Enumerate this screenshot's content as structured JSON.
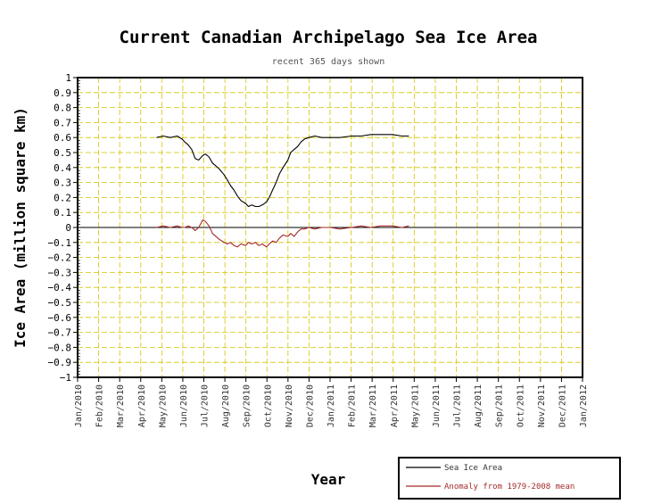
{
  "chart_data": {
    "type": "line",
    "title": "Current Canadian Archipelago Sea Ice Area",
    "subtitle": "recent 365 days shown",
    "xlabel": "Year",
    "ylabel": "Ice Area (million square km)",
    "ylim": [
      -1,
      1
    ],
    "ytick_step": 0.1,
    "ytick_labels": [
      "1",
      "0.9",
      "0.8",
      "0.7",
      "0.6",
      "0.5",
      "0.4",
      "0.3",
      "0.2",
      "0.1",
      "0",
      "−0.1",
      "−0.2",
      "−0.3",
      "−0.4",
      "−0.5",
      "−0.6",
      "−0.7",
      "−0.8",
      "−0.9",
      "−1"
    ],
    "xtick_labels": [
      "Jan/2010",
      "Feb/2010",
      "Mar/2010",
      "Apr/2010",
      "May/2010",
      "Jun/2010",
      "Jul/2010",
      "Aug/2010",
      "Sep/2010",
      "Oct/2010",
      "Nov/2010",
      "Dec/2010",
      "Jan/2011",
      "Feb/2011",
      "Mar/2011",
      "Apr/2011",
      "May/2011",
      "Jun/2011",
      "Jul/2011",
      "Aug/2011",
      "Sep/2011",
      "Oct/2011",
      "Nov/2011",
      "Dec/2011",
      "Jan/2012"
    ],
    "xlim": [
      "2010-01-01",
      "2012-01-01"
    ],
    "grid": true,
    "grid_color": "#d4c400",
    "legend_position": "bottom-right",
    "series": [
      {
        "name": "Sea Ice Area",
        "color": "#000000",
        "x": [
          "2010-04-25",
          "2010-05-05",
          "2010-05-15",
          "2010-05-25",
          "2010-06-01",
          "2010-06-05",
          "2010-06-10",
          "2010-06-15",
          "2010-06-20",
          "2010-06-25",
          "2010-07-01",
          "2010-07-05",
          "2010-07-10",
          "2010-07-15",
          "2010-07-20",
          "2010-07-25",
          "2010-08-01",
          "2010-08-05",
          "2010-08-10",
          "2010-08-15",
          "2010-08-20",
          "2010-08-25",
          "2010-09-01",
          "2010-09-05",
          "2010-09-10",
          "2010-09-15",
          "2010-09-20",
          "2010-09-25",
          "2010-10-01",
          "2010-10-05",
          "2010-10-10",
          "2010-10-15",
          "2010-10-20",
          "2010-10-25",
          "2010-11-01",
          "2010-11-05",
          "2010-11-10",
          "2010-11-15",
          "2010-11-20",
          "2010-11-25",
          "2010-12-01",
          "2010-12-10",
          "2010-12-20",
          "2011-01-01",
          "2011-01-15",
          "2011-02-01",
          "2011-02-15",
          "2011-03-01",
          "2011-03-15",
          "2011-04-01",
          "2011-04-15",
          "2011-04-25"
        ],
        "values": [
          0.6,
          0.61,
          0.6,
          0.61,
          0.59,
          0.57,
          0.55,
          0.52,
          0.46,
          0.45,
          0.48,
          0.49,
          0.47,
          0.43,
          0.41,
          0.39,
          0.35,
          0.32,
          0.28,
          0.25,
          0.21,
          0.18,
          0.16,
          0.14,
          0.15,
          0.14,
          0.14,
          0.15,
          0.17,
          0.2,
          0.25,
          0.3,
          0.36,
          0.4,
          0.45,
          0.5,
          0.52,
          0.54,
          0.57,
          0.59,
          0.6,
          0.61,
          0.6,
          0.6,
          0.6,
          0.61,
          0.61,
          0.62,
          0.62,
          0.62,
          0.61,
          0.61
        ]
      },
      {
        "name": "Anomaly from 1979-2008 mean",
        "color": "#a52a2a",
        "x": [
          "2010-04-25",
          "2010-05-05",
          "2010-05-15",
          "2010-05-25",
          "2010-06-01",
          "2010-06-05",
          "2010-06-10",
          "2010-06-15",
          "2010-06-20",
          "2010-06-25",
          "2010-07-01",
          "2010-07-05",
          "2010-07-10",
          "2010-07-15",
          "2010-07-20",
          "2010-07-25",
          "2010-08-01",
          "2010-08-05",
          "2010-08-10",
          "2010-08-15",
          "2010-08-20",
          "2010-08-25",
          "2010-09-01",
          "2010-09-05",
          "2010-09-10",
          "2010-09-15",
          "2010-09-20",
          "2010-09-25",
          "2010-10-01",
          "2010-10-05",
          "2010-10-10",
          "2010-10-15",
          "2010-10-20",
          "2010-10-25",
          "2010-11-01",
          "2010-11-05",
          "2010-11-10",
          "2010-11-15",
          "2010-11-20",
          "2010-11-25",
          "2010-12-01",
          "2010-12-10",
          "2010-12-20",
          "2011-01-01",
          "2011-01-15",
          "2011-02-01",
          "2011-02-15",
          "2011-03-01",
          "2011-03-15",
          "2011-04-01",
          "2011-04-15",
          "2011-04-25"
        ],
        "values": [
          0.0,
          0.01,
          0.0,
          0.01,
          0.0,
          0.0,
          0.01,
          0.0,
          -0.02,
          0.0,
          0.05,
          0.04,
          0.01,
          -0.04,
          -0.06,
          -0.08,
          -0.1,
          -0.11,
          -0.1,
          -0.12,
          -0.13,
          -0.11,
          -0.12,
          -0.1,
          -0.11,
          -0.1,
          -0.12,
          -0.11,
          -0.13,
          -0.11,
          -0.09,
          -0.1,
          -0.07,
          -0.05,
          -0.06,
          -0.04,
          -0.06,
          -0.03,
          -0.01,
          -0.01,
          0.0,
          -0.01,
          0.0,
          0.0,
          -0.01,
          0.0,
          0.01,
          0.0,
          0.01,
          0.01,
          0.0,
          0.01
        ]
      }
    ]
  }
}
